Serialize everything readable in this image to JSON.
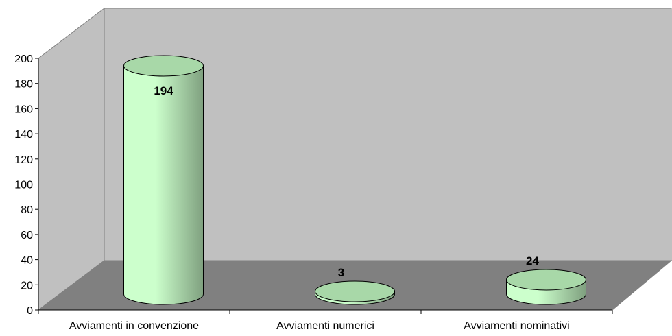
{
  "chart_data": {
    "type": "bar",
    "style": "3d-cylinder",
    "categories": [
      "Avviamenti in convenzione",
      "Avviamenti numerici",
      "Avviamenti nominativi"
    ],
    "series": [
      {
        "values": [
          194,
          3,
          24
        ]
      }
    ],
    "data_labels": [
      "194",
      "3",
      "24"
    ],
    "ylim": [
      0,
      200
    ],
    "yticks": [
      0,
      20,
      40,
      60,
      80,
      100,
      120,
      140,
      160,
      180,
      200
    ],
    "xlabel": "",
    "ylabel": "",
    "title": "",
    "grid": false,
    "legend": "none",
    "colors": {
      "back_wall": "#c0c0c0",
      "floor": "#808080",
      "bar_light": "#ccffcc",
      "bar_dark": "#7fa07f",
      "bar_top": "#a8d8a8"
    }
  }
}
